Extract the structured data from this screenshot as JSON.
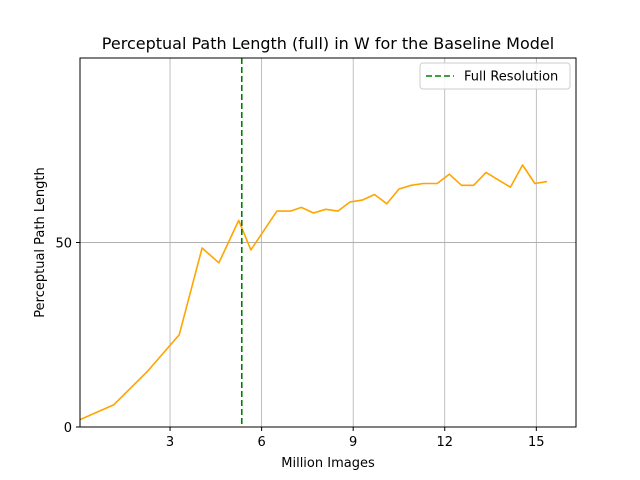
{
  "chart_data": {
    "type": "line",
    "title": "Perceptual Path Length (full) in W for the Baseline Model",
    "xlabel": "Million Images",
    "ylabel": "Perceptual Path Length",
    "xlim": [
      0.05,
      16.3
    ],
    "ylim": [
      0,
      100
    ],
    "xticks": [
      3,
      6,
      9,
      12,
      15
    ],
    "yticks": [
      0,
      50
    ],
    "grid": true,
    "legend_position": "top-right",
    "series": [
      {
        "name": "",
        "color": "#ffa500",
        "x": [
          0.05,
          1.15,
          2.25,
          3.3,
          4.05,
          4.6,
          5.25,
          5.65,
          6.5,
          6.95,
          7.3,
          7.7,
          8.1,
          8.5,
          8.9,
          9.3,
          9.7,
          10.1,
          10.5,
          10.9,
          11.3,
          11.75,
          12.15,
          12.55,
          12.95,
          13.35,
          13.75,
          14.15,
          14.55,
          14.95,
          15.35
        ],
        "y": [
          2,
          6,
          15,
          25,
          48.5,
          44.5,
          56,
          48,
          58.5,
          58.5,
          59.5,
          58,
          59,
          58.5,
          61,
          61.5,
          63,
          60.5,
          64.5,
          65.5,
          66,
          66,
          68.5,
          65.5,
          65.5,
          69,
          67,
          65,
          71,
          66,
          66.5
        ]
      }
    ],
    "vlines": [
      {
        "name": "Full Resolution",
        "x": 5.35,
        "color": "#008000",
        "style": "dashed"
      }
    ],
    "hlines": [
      {
        "y": 50,
        "color": "#b0b0b0"
      }
    ],
    "legend": [
      {
        "label": "Full Resolution",
        "color": "#008000",
        "style": "dashed"
      }
    ]
  }
}
